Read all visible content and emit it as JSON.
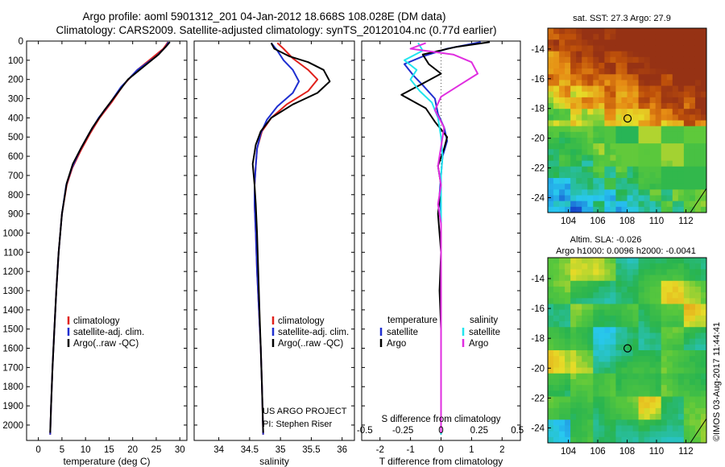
{
  "title_line1": "Argo profile: aoml 5901312_201 04-Jan-2012 18.668S 108.028E (DM data)",
  "title_line2": "Climatology: CARS2009. Satellite-adjusted climatology: synTS_20120104.nc (0.77d earlier)",
  "sst_title": "sat. SST: 27.3 Argo: 27.9",
  "sla_title1": "Altim. SLA: -0.026",
  "sla_title2": "Argo h1000: 0.0096 h2000: -0.0041",
  "watermark": "©IMOS 03-Aug-2017 11:44:41",
  "project_line1": "US ARGO PROJECT",
  "project_line2": "PI: Stephen Riser",
  "colors": {
    "climatology": "#e0201b",
    "satellite": "#1f2fd0",
    "argo": "#000000",
    "sat_s": "#22e5ee",
    "argo_s": "#e02ee0"
  },
  "chart_data": [
    {
      "type": "line",
      "name": "temperature",
      "xlabel": "temperature (deg C)",
      "xlim": [
        -2.5,
        31.5
      ],
      "xticks": [
        0,
        5,
        10,
        15,
        20,
        25,
        30
      ],
      "ylim": [
        0,
        2080
      ],
      "yticks": [
        0,
        100,
        200,
        300,
        400,
        500,
        600,
        700,
        800,
        900,
        1000,
        1100,
        1200,
        1300,
        1400,
        1500,
        1600,
        1700,
        1800,
        1900,
        2000
      ],
      "legend": [
        "climatology",
        "satellite-adj. clim.",
        "Argo(..raw -QC)"
      ],
      "series": [
        {
          "name": "climatology",
          "color": "#e0201b",
          "points": [
            [
              27.5,
              5
            ],
            [
              26.5,
              40
            ],
            [
              24,
              90
            ],
            [
              21,
              150
            ],
            [
              18,
              230
            ],
            [
              15.5,
              320
            ],
            [
              13,
              400
            ],
            [
              11,
              480
            ],
            [
              9,
              570
            ],
            [
              7.2,
              660
            ],
            [
              6,
              750
            ],
            [
              5,
              900
            ],
            [
              4.3,
              1100
            ],
            [
              3.8,
              1300
            ],
            [
              3.4,
              1500
            ],
            [
              3,
              1700
            ],
            [
              2.7,
              1900
            ],
            [
              2.5,
              2050
            ]
          ]
        },
        {
          "name": "satellite-adj. clim.",
          "color": "#1f2fd0",
          "points": [
            [
              27.6,
              5
            ],
            [
              27,
              30
            ],
            [
              25,
              80
            ],
            [
              21,
              150
            ],
            [
              17.5,
              240
            ],
            [
              15,
              330
            ],
            [
              12.8,
              400
            ],
            [
              10.8,
              480
            ],
            [
              8.8,
              570
            ],
            [
              7.1,
              660
            ],
            [
              5.9,
              750
            ],
            [
              5,
              900
            ],
            [
              4.3,
              1100
            ],
            [
              3.8,
              1300
            ],
            [
              3.4,
              1500
            ],
            [
              3,
              1700
            ],
            [
              2.7,
              1900
            ],
            [
              2.5,
              2050
            ]
          ]
        },
        {
          "name": "Argo(..raw -QC)",
          "color": "#000000",
          "points": [
            [
              27.9,
              5
            ],
            [
              27.2,
              25
            ],
            [
              25.5,
              70
            ],
            [
              22.5,
              130
            ],
            [
              19,
              200
            ],
            [
              16.5,
              280
            ],
            [
              14,
              360
            ],
            [
              11.5,
              450
            ],
            [
              9.2,
              550
            ],
            [
              7.3,
              640
            ],
            [
              6,
              740
            ],
            [
              5,
              900
            ],
            [
              4.3,
              1100
            ],
            [
              3.8,
              1300
            ],
            [
              3.4,
              1500
            ],
            [
              3,
              1700
            ],
            [
              2.7,
              1900
            ],
            [
              2.5,
              2040
            ]
          ]
        }
      ]
    },
    {
      "type": "line",
      "name": "salinity",
      "xlabel": "salinity",
      "xlim": [
        33.6,
        36.2
      ],
      "xticks": [
        34,
        34.5,
        35,
        35.5,
        36
      ],
      "ylim": [
        0,
        2080
      ],
      "legend": [
        "climatology",
        "satellite-adj. clim.",
        "Argo(..raw -QC)"
      ],
      "series": [
        {
          "name": "climatology",
          "color": "#e0201b",
          "points": [
            [
              34.95,
              10
            ],
            [
              35.05,
              40
            ],
            [
              35.2,
              90
            ],
            [
              35.45,
              150
            ],
            [
              35.6,
              200
            ],
            [
              35.45,
              260
            ],
            [
              35.1,
              330
            ],
            [
              34.85,
              400
            ],
            [
              34.7,
              470
            ],
            [
              34.62,
              560
            ],
            [
              34.6,
              650
            ],
            [
              34.58,
              750
            ],
            [
              34.58,
              850
            ],
            [
              34.6,
              1000
            ],
            [
              34.62,
              1200
            ],
            [
              34.65,
              1400
            ],
            [
              34.68,
              1600
            ],
            [
              34.7,
              1800
            ],
            [
              34.72,
              2050
            ]
          ]
        },
        {
          "name": "satellite-adj. clim.",
          "color": "#1f2fd0",
          "points": [
            [
              34.85,
              10
            ],
            [
              34.95,
              50
            ],
            [
              35.05,
              100
            ],
            [
              35.2,
              150
            ],
            [
              35.3,
              210
            ],
            [
              35.2,
              270
            ],
            [
              34.95,
              340
            ],
            [
              34.78,
              410
            ],
            [
              34.68,
              480
            ],
            [
              34.62,
              560
            ],
            [
              34.6,
              650
            ],
            [
              34.58,
              750
            ],
            [
              34.58,
              850
            ],
            [
              34.6,
              1000
            ],
            [
              34.62,
              1200
            ],
            [
              34.65,
              1400
            ],
            [
              34.68,
              1600
            ],
            [
              34.7,
              1800
            ],
            [
              34.72,
              2050
            ]
          ]
        },
        {
          "name": "Argo(..raw -QC)",
          "color": "#000000",
          "points": [
            [
              34.85,
              10
            ],
            [
              34.9,
              40
            ],
            [
              35.15,
              80
            ],
            [
              35.45,
              110
            ],
            [
              35.7,
              150
            ],
            [
              35.8,
              210
            ],
            [
              35.6,
              270
            ],
            [
              35.2,
              330
            ],
            [
              34.85,
              400
            ],
            [
              34.68,
              470
            ],
            [
              34.6,
              540
            ],
            [
              34.55,
              640
            ],
            [
              34.58,
              750
            ],
            [
              34.6,
              850
            ],
            [
              34.62,
              1000
            ],
            [
              34.64,
              1200
            ],
            [
              34.66,
              1400
            ],
            [
              34.68,
              1600
            ],
            [
              34.7,
              1800
            ],
            [
              34.72,
              2040
            ]
          ]
        }
      ]
    },
    {
      "type": "line",
      "name": "difference",
      "xlabel": "T difference from climatology",
      "xlabel2": "S difference from climatology",
      "xlim": [
        -2.6,
        2.6
      ],
      "xticks": [
        -2,
        -1,
        0,
        1,
        2
      ],
      "s_ticks": [
        -0.5,
        -0.25,
        0,
        0.25,
        0.5
      ],
      "s_scale": 5,
      "ylim": [
        0,
        2080
      ],
      "legend_t_header": "temperature",
      "legend_s_header": "salinity",
      "legend_t": [
        "satellite",
        "Argo"
      ],
      "legend_s": [
        "satellite",
        "Argo"
      ],
      "series": [
        {
          "name": "T satellite",
          "color": "#1f2fd0",
          "points": [
            [
              1.3,
              5
            ],
            [
              0.2,
              40
            ],
            [
              -0.6,
              80
            ],
            [
              -1.2,
              120
            ],
            [
              -0.9,
              180
            ],
            [
              -0.6,
              230
            ],
            [
              -0.2,
              300
            ],
            [
              -0.1,
              380
            ],
            [
              0.1,
              450
            ],
            [
              0.2,
              520
            ],
            [
              0.05,
              600
            ],
            [
              0,
              700
            ],
            [
              -0.05,
              800
            ],
            [
              0,
              900
            ],
            [
              0,
              1000
            ],
            [
              0,
              1200
            ],
            [
              0,
              1400
            ],
            [
              0,
              1600
            ],
            [
              0,
              1800
            ],
            [
              0,
              2050
            ]
          ]
        },
        {
          "name": "T Argo",
          "color": "#000000",
          "points": [
            [
              1.6,
              5
            ],
            [
              0.5,
              30
            ],
            [
              -0.6,
              70
            ],
            [
              -0.4,
              120
            ],
            [
              0,
              170
            ],
            [
              -0.7,
              230
            ],
            [
              -1.3,
              280
            ],
            [
              -0.5,
              350
            ],
            [
              -0.2,
              420
            ],
            [
              0.2,
              500
            ],
            [
              0.1,
              560
            ],
            [
              -0.1,
              650
            ],
            [
              0,
              750
            ],
            [
              -0.1,
              900
            ],
            [
              0,
              1100
            ],
            [
              -0.05,
              1300
            ],
            [
              0,
              1500
            ],
            [
              0,
              1700
            ],
            [
              0,
              1900
            ],
            [
              0,
              2040
            ]
          ]
        },
        {
          "name": "S satellite",
          "color": "#22e5ee",
          "points": [
            [
              -0.75,
              10
            ],
            [
              -0.6,
              50
            ],
            [
              -1.2,
              100
            ],
            [
              -0.8,
              150
            ],
            [
              -1.0,
              200
            ],
            [
              -0.7,
              260
            ],
            [
              -0.3,
              320
            ],
            [
              -0.1,
              400
            ],
            [
              0,
              500
            ],
            [
              0.05,
              600
            ],
            [
              0,
              700
            ],
            [
              0,
              800
            ],
            [
              0,
              1000
            ],
            [
              0,
              1200
            ],
            [
              0,
              1400
            ],
            [
              0,
              1600
            ],
            [
              0,
              1800
            ],
            [
              0,
              2050
            ]
          ]
        },
        {
          "name": "S Argo",
          "color": "#e02ee0",
          "points": [
            [
              -0.5,
              10
            ],
            [
              -1.0,
              40
            ],
            [
              0.4,
              70
            ],
            [
              1.0,
              110
            ],
            [
              1.2,
              170
            ],
            [
              0.6,
              230
            ],
            [
              0,
              290
            ],
            [
              -0.2,
              360
            ],
            [
              0.1,
              450
            ],
            [
              0,
              550
            ],
            [
              -0.1,
              650
            ],
            [
              0,
              750
            ],
            [
              -0.1,
              850
            ],
            [
              0,
              950
            ],
            [
              0,
              1100
            ],
            [
              0,
              1300
            ],
            [
              0,
              1500
            ],
            [
              0,
              1700
            ],
            [
              0,
              1900
            ],
            [
              0,
              2040
            ]
          ]
        }
      ]
    },
    {
      "type": "heatmap",
      "name": "sst-map",
      "title": "sat. SST: 27.3 Argo: 27.9",
      "xlim": [
        102.6,
        113.4
      ],
      "ylim": [
        -25.0,
        -12.6
      ],
      "xticks": [
        104,
        106,
        108,
        110,
        112
      ],
      "yticks": [
        -14,
        -16,
        -18,
        -20,
        -22,
        -24
      ],
      "marker": [
        108.03,
        -18.67
      ]
    },
    {
      "type": "heatmap",
      "name": "sla-map",
      "title": "Altim. SLA: -0.026",
      "xlim": [
        102.6,
        113.4
      ],
      "ylim": [
        -25.0,
        -12.6
      ],
      "xticks": [
        104,
        106,
        108,
        110,
        112
      ],
      "yticks": [
        -14,
        -16,
        -18,
        -20,
        -22,
        -24
      ],
      "marker": [
        108.03,
        -18.67
      ]
    }
  ]
}
